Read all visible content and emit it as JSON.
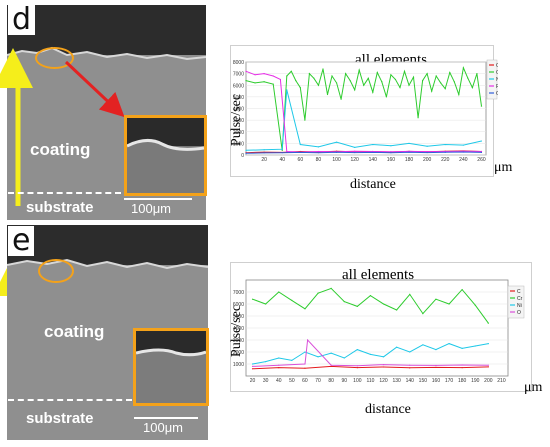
{
  "panels": [
    {
      "letter": "d",
      "label_coating": "coating",
      "label_substrate": "substrate",
      "scale": "100μm"
    },
    {
      "letter": "e",
      "label_coating": "coating",
      "label_substrate": "substrate",
      "scale": "100μm"
    }
  ],
  "colors": {
    "arrow_yellow": "#f5ee1b",
    "arrow_red": "#e32222",
    "box_orange": "#f4a21a"
  },
  "chart_data": [
    {
      "type": "line",
      "title": "all elements",
      "ylabel": "Pulse/sec",
      "xlabel": "distance",
      "x_unit": "μm",
      "xlim": [
        0,
        265
      ],
      "ylim": [
        0,
        8000
      ],
      "xticks": [
        20,
        40,
        60,
        80,
        100,
        120,
        140,
        160,
        180,
        200,
        220,
        240,
        260
      ],
      "yticks": [
        0,
        1000,
        2000,
        3000,
        4000,
        5000,
        6000,
        7000,
        8000
      ],
      "legend_position": "top-right",
      "series": [
        {
          "name": "C Kα1_2",
          "color": "#e41a1c",
          "x": [
            0,
            20,
            40,
            60,
            80,
            100,
            120,
            140,
            160,
            180,
            200,
            220,
            240,
            260
          ],
          "values": [
            200,
            250,
            220,
            300,
            260,
            320,
            280,
            300,
            260,
            310,
            280,
            330,
            350,
            300
          ]
        },
        {
          "name": "Cr Kα1",
          "color": "#2ecc2e",
          "x": [
            0,
            10,
            20,
            30,
            40,
            45,
            50,
            55,
            60,
            65,
            70,
            75,
            80,
            85,
            90,
            95,
            100,
            105,
            110,
            115,
            120,
            125,
            130,
            135,
            140,
            145,
            150,
            155,
            160,
            165,
            170,
            175,
            180,
            185,
            190,
            195,
            200,
            205,
            210,
            215,
            220,
            225,
            230,
            235,
            240,
            245,
            250,
            255,
            260
          ],
          "values": [
            6400,
            6200,
            6300,
            6100,
            400,
            6800,
            7200,
            6400,
            5800,
            3000,
            7000,
            6600,
            6000,
            7400,
            5200,
            6800,
            6200,
            4800,
            7000,
            6400,
            5600,
            7300,
            6000,
            6600,
            5400,
            7100,
            6300,
            5000,
            6900,
            6500,
            5800,
            7200,
            6000,
            6700,
            3200,
            6400,
            7000,
            5500,
            6800,
            6200,
            5700,
            7100,
            6300,
            5200,
            7500,
            6600,
            5800,
            7000,
            4200
          ]
        },
        {
          "name": "Ni Kα1",
          "color": "#1ec8e8",
          "x": [
            0,
            20,
            40,
            45,
            60,
            80,
            100,
            120,
            140,
            160,
            180,
            200,
            220,
            240,
            260
          ],
          "values": [
            400,
            450,
            500,
            5600,
            900,
            700,
            1100,
            650,
            900,
            800,
            1000,
            750,
            900,
            850,
            1200
          ]
        },
        {
          "name": "Fe Kα1",
          "color": "#e62ee6",
          "x": [
            0,
            10,
            20,
            30,
            38,
            45,
            60,
            80,
            100,
            120,
            140,
            160,
            180,
            200,
            220,
            240,
            260
          ],
          "values": [
            7200,
            6900,
            7000,
            6800,
            6500,
            300,
            250,
            300,
            280,
            320,
            300,
            280,
            310,
            290,
            300,
            320,
            300
          ]
        },
        {
          "name": "O Kα1",
          "color": "#2f5fd8",
          "x": [
            0,
            20,
            40,
            60,
            80,
            100,
            120,
            140,
            160,
            180,
            200,
            220,
            240,
            260
          ],
          "values": [
            150,
            180,
            200,
            220,
            200,
            230,
            210,
            220,
            200,
            240,
            210,
            230,
            260,
            220
          ]
        }
      ]
    },
    {
      "type": "line",
      "title": "all elements",
      "ylabel": "Pulse/sec",
      "xlabel": "distance",
      "x_unit": "μm",
      "xlim": [
        15,
        215
      ],
      "ylim": [
        0,
        8000
      ],
      "xticks": [
        20,
        30,
        40,
        50,
        60,
        70,
        80,
        90,
        100,
        110,
        120,
        130,
        140,
        150,
        160,
        170,
        180,
        190,
        200,
        210
      ],
      "yticks": [
        1000,
        2000,
        3000,
        4000,
        5000,
        6000,
        7000
      ],
      "legend_position": "top-right",
      "series": [
        {
          "name": "C",
          "color": "#e41a1c",
          "x": [
            20,
            40,
            60,
            80,
            100,
            120,
            140,
            160,
            180,
            200
          ],
          "values": [
            600,
            700,
            650,
            800,
            700,
            750,
            680,
            720,
            700,
            760
          ]
        },
        {
          "name": "Cr",
          "color": "#2ecc2e",
          "x": [
            20,
            30,
            40,
            50,
            60,
            70,
            80,
            90,
            100,
            110,
            120,
            130,
            140,
            150,
            160,
            170,
            180,
            190,
            200
          ],
          "values": [
            6400,
            6000,
            7000,
            6300,
            5600,
            6900,
            7300,
            6200,
            5800,
            6700,
            6000,
            5500,
            6800,
            5200,
            6400,
            6000,
            7200,
            5900,
            4400
          ]
        },
        {
          "name": "Ni",
          "color": "#1ec8e8",
          "x": [
            20,
            30,
            40,
            50,
            60,
            70,
            80,
            90,
            100,
            110,
            120,
            130,
            140,
            150,
            160,
            170,
            180,
            190,
            200
          ],
          "values": [
            1000,
            1200,
            1500,
            1300,
            2000,
            1600,
            1900,
            1500,
            2200,
            1800,
            1600,
            2400,
            2000,
            2600,
            2200,
            2700,
            2300,
            2500,
            2700
          ]
        },
        {
          "name": "O",
          "color": "#d94fd9",
          "x": [
            20,
            40,
            60,
            62,
            80,
            100,
            120,
            140,
            160,
            180,
            200
          ],
          "values": [
            800,
            900,
            1000,
            3000,
            900,
            850,
            950,
            900,
            880,
            920,
            900
          ]
        }
      ]
    }
  ]
}
